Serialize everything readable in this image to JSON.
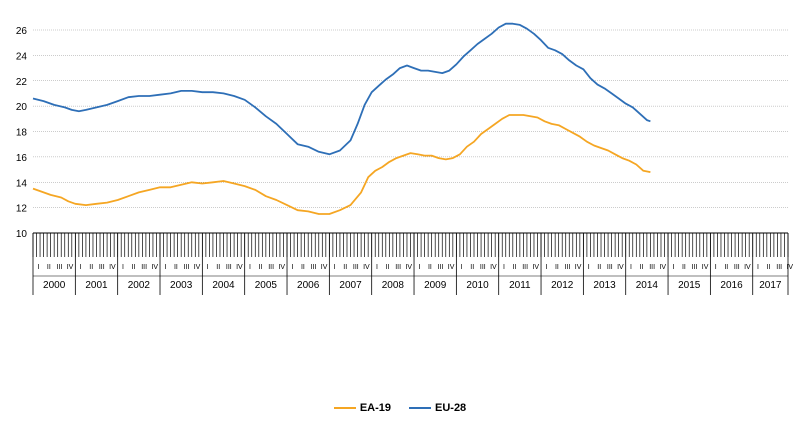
{
  "colors": {
    "EA-19": "#f5a623",
    "EU-28": "#2e6fb7"
  },
  "chart_data": {
    "type": "line",
    "title": "",
    "xlabel": "",
    "ylabel": "",
    "ylim": [
      10,
      26
    ],
    "y_ticks": [
      10,
      12,
      14,
      16,
      18,
      20,
      22,
      24,
      26
    ],
    "grid": true,
    "legend_position": "bottom",
    "years": [
      "2000",
      "2001",
      "2002",
      "2003",
      "2004",
      "2005",
      "2006",
      "2007",
      "2008",
      "2009",
      "2010",
      "2011",
      "2012",
      "2013",
      "2014",
      "2015",
      "2016",
      "2017"
    ],
    "quarter_labels": [
      "I",
      "II",
      "III",
      "IV"
    ],
    "series": [
      {
        "name": "EA-19",
        "color": "#f5a623",
        "points": [
          [
            0,
            13.5
          ],
          [
            2,
            13.3
          ],
          [
            5,
            13.0
          ],
          [
            8,
            12.8
          ],
          [
            10,
            12.5
          ],
          [
            12,
            12.3
          ],
          [
            15,
            12.2
          ],
          [
            18,
            12.3
          ],
          [
            21,
            12.4
          ],
          [
            24,
            12.6
          ],
          [
            27,
            12.9
          ],
          [
            30,
            13.2
          ],
          [
            33,
            13.4
          ],
          [
            36,
            13.6
          ],
          [
            39,
            13.6
          ],
          [
            42,
            13.8
          ],
          [
            45,
            14.0
          ],
          [
            48,
            13.9
          ],
          [
            51,
            14.0
          ],
          [
            54,
            14.1
          ],
          [
            57,
            13.9
          ],
          [
            60,
            13.7
          ],
          [
            63,
            13.4
          ],
          [
            66,
            12.9
          ],
          [
            69,
            12.6
          ],
          [
            72,
            12.2
          ],
          [
            75,
            11.8
          ],
          [
            78,
            11.7
          ],
          [
            81,
            11.5
          ],
          [
            84,
            11.5
          ],
          [
            87,
            11.8
          ],
          [
            90,
            12.2
          ],
          [
            93,
            13.2
          ],
          [
            95,
            14.4
          ],
          [
            97,
            14.9
          ],
          [
            99,
            15.2
          ],
          [
            101,
            15.6
          ],
          [
            103,
            15.9
          ],
          [
            105,
            16.1
          ],
          [
            107,
            16.3
          ],
          [
            109,
            16.2
          ],
          [
            111,
            16.1
          ],
          [
            113,
            16.1
          ],
          [
            115,
            15.9
          ],
          [
            117,
            15.8
          ],
          [
            119,
            15.9
          ],
          [
            121,
            16.2
          ],
          [
            123,
            16.8
          ],
          [
            125,
            17.2
          ],
          [
            127,
            17.8
          ],
          [
            129,
            18.2
          ],
          [
            131,
            18.6
          ],
          [
            133,
            19.0
          ],
          [
            135,
            19.3
          ],
          [
            137,
            19.3
          ],
          [
            139,
            19.3
          ],
          [
            141,
            19.2
          ],
          [
            143,
            19.1
          ],
          [
            145,
            18.8
          ],
          [
            147,
            18.6
          ],
          [
            149,
            18.5
          ],
          [
            151,
            18.2
          ],
          [
            153,
            17.9
          ],
          [
            155,
            17.6
          ],
          [
            157,
            17.2
          ],
          [
            159,
            16.9
          ],
          [
            161,
            16.7
          ],
          [
            163,
            16.5
          ],
          [
            165,
            16.2
          ],
          [
            167,
            15.9
          ],
          [
            169,
            15.7
          ],
          [
            171,
            15.4
          ],
          [
            173,
            14.9
          ],
          [
            175,
            14.8
          ]
        ]
      },
      {
        "name": "EU-28",
        "color": "#2e6fb7",
        "points": [
          [
            0,
            20.6
          ],
          [
            3,
            20.4
          ],
          [
            6,
            20.1
          ],
          [
            9,
            19.9
          ],
          [
            11,
            19.7
          ],
          [
            13,
            19.6
          ],
          [
            15,
            19.7
          ],
          [
            18,
            19.9
          ],
          [
            21,
            20.1
          ],
          [
            24,
            20.4
          ],
          [
            27,
            20.7
          ],
          [
            30,
            20.8
          ],
          [
            33,
            20.8
          ],
          [
            36,
            20.9
          ],
          [
            39,
            21.0
          ],
          [
            42,
            21.2
          ],
          [
            45,
            21.2
          ],
          [
            48,
            21.1
          ],
          [
            51,
            21.1
          ],
          [
            54,
            21.0
          ],
          [
            57,
            20.8
          ],
          [
            60,
            20.5
          ],
          [
            63,
            19.9
          ],
          [
            66,
            19.2
          ],
          [
            69,
            18.6
          ],
          [
            72,
            17.8
          ],
          [
            75,
            17.0
          ],
          [
            78,
            16.8
          ],
          [
            81,
            16.4
          ],
          [
            84,
            16.2
          ],
          [
            87,
            16.5
          ],
          [
            90,
            17.3
          ],
          [
            92,
            18.6
          ],
          [
            94,
            20.1
          ],
          [
            96,
            21.1
          ],
          [
            98,
            21.6
          ],
          [
            100,
            22.1
          ],
          [
            102,
            22.5
          ],
          [
            104,
            23.0
          ],
          [
            106,
            23.2
          ],
          [
            108,
            23.0
          ],
          [
            110,
            22.8
          ],
          [
            112,
            22.8
          ],
          [
            114,
            22.7
          ],
          [
            116,
            22.6
          ],
          [
            118,
            22.8
          ],
          [
            120,
            23.3
          ],
          [
            122,
            23.9
          ],
          [
            124,
            24.4
          ],
          [
            126,
            24.9
          ],
          [
            128,
            25.3
          ],
          [
            130,
            25.7
          ],
          [
            132,
            26.2
          ],
          [
            134,
            26.5
          ],
          [
            136,
            26.5
          ],
          [
            138,
            26.4
          ],
          [
            140,
            26.1
          ],
          [
            142,
            25.7
          ],
          [
            144,
            25.2
          ],
          [
            146,
            24.6
          ],
          [
            148,
            24.4
          ],
          [
            150,
            24.1
          ],
          [
            152,
            23.6
          ],
          [
            154,
            23.2
          ],
          [
            156,
            22.9
          ],
          [
            158,
            22.2
          ],
          [
            160,
            21.7
          ],
          [
            162,
            21.4
          ],
          [
            164,
            21.0
          ],
          [
            166,
            20.6
          ],
          [
            168,
            20.2
          ],
          [
            170,
            19.9
          ],
          [
            172,
            19.4
          ],
          [
            174,
            18.9
          ],
          [
            175,
            18.8
          ]
        ]
      }
    ]
  }
}
